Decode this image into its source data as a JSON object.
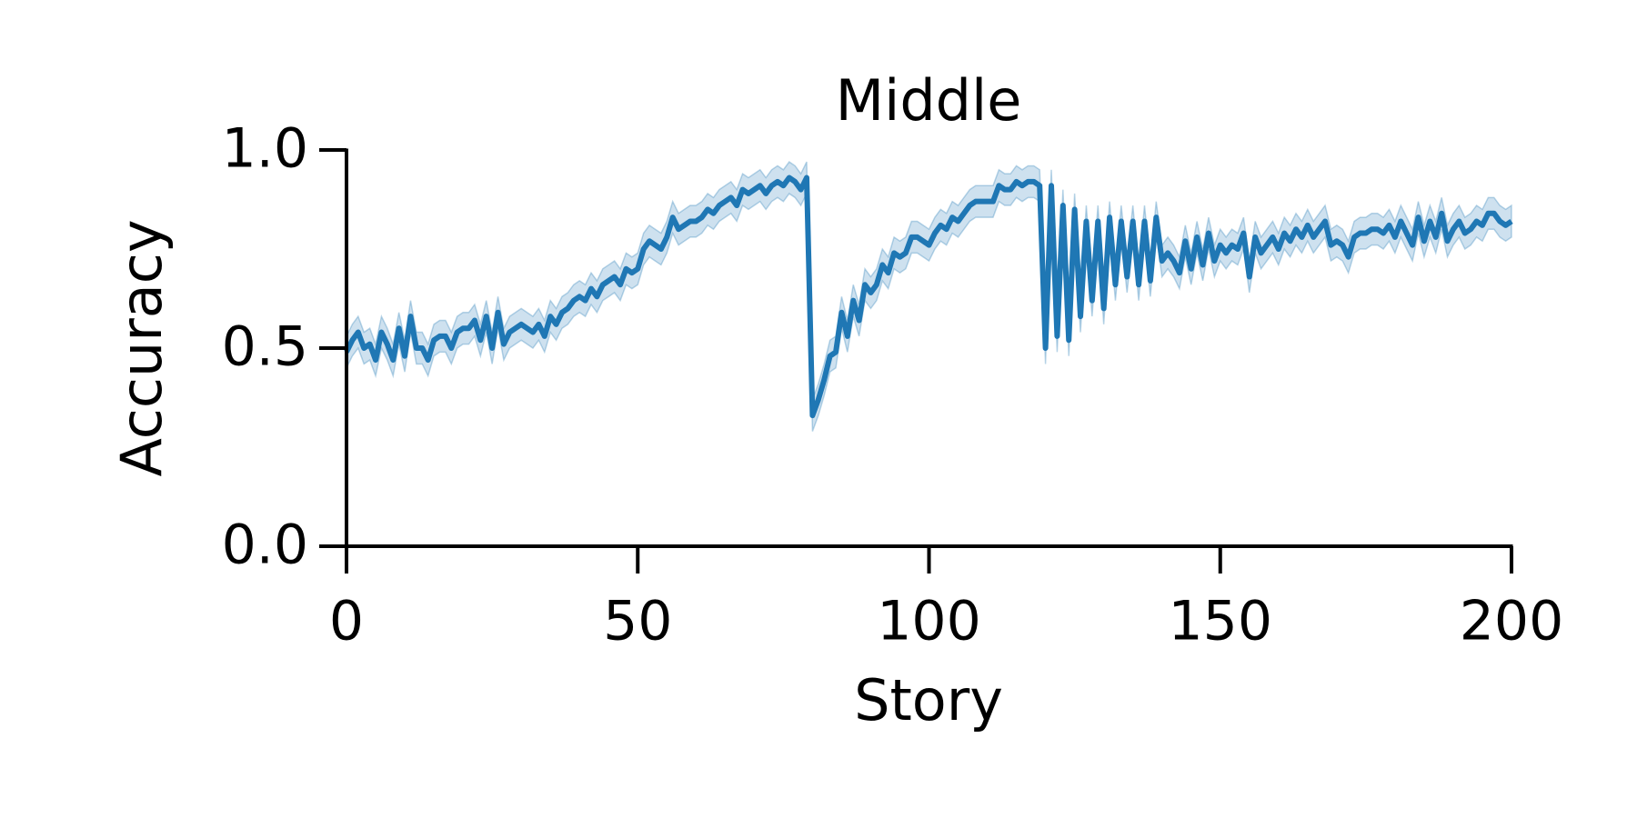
{
  "chart_data": {
    "type": "line",
    "title": "Middle",
    "x_label": "Story",
    "y_label": "Accuracy",
    "x": [
      0,
      1,
      2,
      3,
      4,
      5,
      6,
      7,
      8,
      9,
      10,
      11,
      12,
      13,
      14,
      15,
      16,
      17,
      18,
      19,
      20,
      21,
      22,
      23,
      24,
      25,
      26,
      27,
      28,
      29,
      30,
      31,
      32,
      33,
      34,
      35,
      36,
      37,
      38,
      39,
      40,
      41,
      42,
      43,
      44,
      45,
      46,
      47,
      48,
      49,
      50,
      51,
      52,
      53,
      54,
      55,
      56,
      57,
      58,
      59,
      60,
      61,
      62,
      63,
      64,
      65,
      66,
      67,
      68,
      69,
      70,
      71,
      72,
      73,
      74,
      75,
      76,
      77,
      78,
      79,
      80,
      81,
      82,
      83,
      84,
      85,
      86,
      87,
      88,
      89,
      90,
      91,
      92,
      93,
      94,
      95,
      96,
      97,
      98,
      99,
      100,
      101,
      102,
      103,
      104,
      105,
      106,
      107,
      108,
      109,
      110,
      111,
      112,
      113,
      114,
      115,
      116,
      117,
      118,
      119,
      120,
      121,
      122,
      123,
      124,
      125,
      126,
      127,
      128,
      129,
      130,
      131,
      132,
      133,
      134,
      135,
      136,
      137,
      138,
      139,
      140,
      141,
      142,
      143,
      144,
      145,
      146,
      147,
      148,
      149,
      150,
      151,
      152,
      153,
      154,
      155,
      156,
      157,
      158,
      159,
      160,
      161,
      162,
      163,
      164,
      165,
      166,
      167,
      168,
      169,
      170,
      171,
      172,
      173,
      174,
      175,
      176,
      177,
      178,
      179,
      180,
      181,
      182,
      183,
      184,
      185,
      186,
      187,
      188,
      189,
      190,
      191,
      192,
      193,
      194,
      195,
      196,
      197,
      198,
      199,
      200
    ],
    "series": [
      {
        "color": "#1f77b4",
        "error": 0.04,
        "values": [
          0.49,
          0.52,
          0.54,
          0.5,
          0.51,
          0.47,
          0.54,
          0.51,
          0.47,
          0.55,
          0.48,
          0.58,
          0.5,
          0.5,
          0.47,
          0.52,
          0.53,
          0.53,
          0.5,
          0.54,
          0.55,
          0.55,
          0.57,
          0.52,
          0.58,
          0.5,
          0.59,
          0.51,
          0.54,
          0.55,
          0.56,
          0.55,
          0.54,
          0.56,
          0.53,
          0.58,
          0.56,
          0.59,
          0.6,
          0.62,
          0.63,
          0.62,
          0.65,
          0.63,
          0.66,
          0.67,
          0.68,
          0.66,
          0.7,
          0.69,
          0.7,
          0.75,
          0.77,
          0.76,
          0.75,
          0.78,
          0.83,
          0.8,
          0.81,
          0.82,
          0.82,
          0.83,
          0.85,
          0.84,
          0.86,
          0.87,
          0.88,
          0.86,
          0.9,
          0.89,
          0.9,
          0.91,
          0.89,
          0.91,
          0.92,
          0.91,
          0.93,
          0.92,
          0.9,
          0.93,
          0.33,
          0.37,
          0.42,
          0.48,
          0.49,
          0.59,
          0.53,
          0.62,
          0.57,
          0.66,
          0.64,
          0.66,
          0.71,
          0.69,
          0.74,
          0.73,
          0.74,
          0.78,
          0.78,
          0.77,
          0.76,
          0.79,
          0.81,
          0.8,
          0.83,
          0.82,
          0.84,
          0.86,
          0.87,
          0.87,
          0.87,
          0.87,
          0.91,
          0.9,
          0.9,
          0.92,
          0.91,
          0.92,
          0.92,
          0.91,
          0.5,
          0.91,
          0.53,
          0.86,
          0.52,
          0.85,
          0.58,
          0.82,
          0.62,
          0.82,
          0.6,
          0.83,
          0.66,
          0.82,
          0.68,
          0.82,
          0.66,
          0.82,
          0.67,
          0.83,
          0.72,
          0.74,
          0.72,
          0.69,
          0.77,
          0.7,
          0.78,
          0.71,
          0.79,
          0.72,
          0.76,
          0.74,
          0.76,
          0.75,
          0.79,
          0.68,
          0.78,
          0.74,
          0.76,
          0.78,
          0.75,
          0.79,
          0.77,
          0.8,
          0.78,
          0.81,
          0.78,
          0.8,
          0.82,
          0.76,
          0.77,
          0.76,
          0.73,
          0.78,
          0.79,
          0.79,
          0.8,
          0.8,
          0.79,
          0.81,
          0.78,
          0.82,
          0.79,
          0.76,
          0.83,
          0.77,
          0.82,
          0.78,
          0.84,
          0.77,
          0.8,
          0.82,
          0.79,
          0.8,
          0.82,
          0.81,
          0.84,
          0.84,
          0.82,
          0.81,
          0.82
        ]
      }
    ],
    "xlim": [
      0,
      200
    ],
    "xticks": [
      0,
      50,
      100,
      150,
      200
    ],
    "ylim": [
      0,
      1
    ],
    "yticks": [
      {
        "value": 0,
        "label": "0.0"
      },
      0.5,
      {
        "value": 1,
        "label": "1.0"
      }
    ]
  }
}
